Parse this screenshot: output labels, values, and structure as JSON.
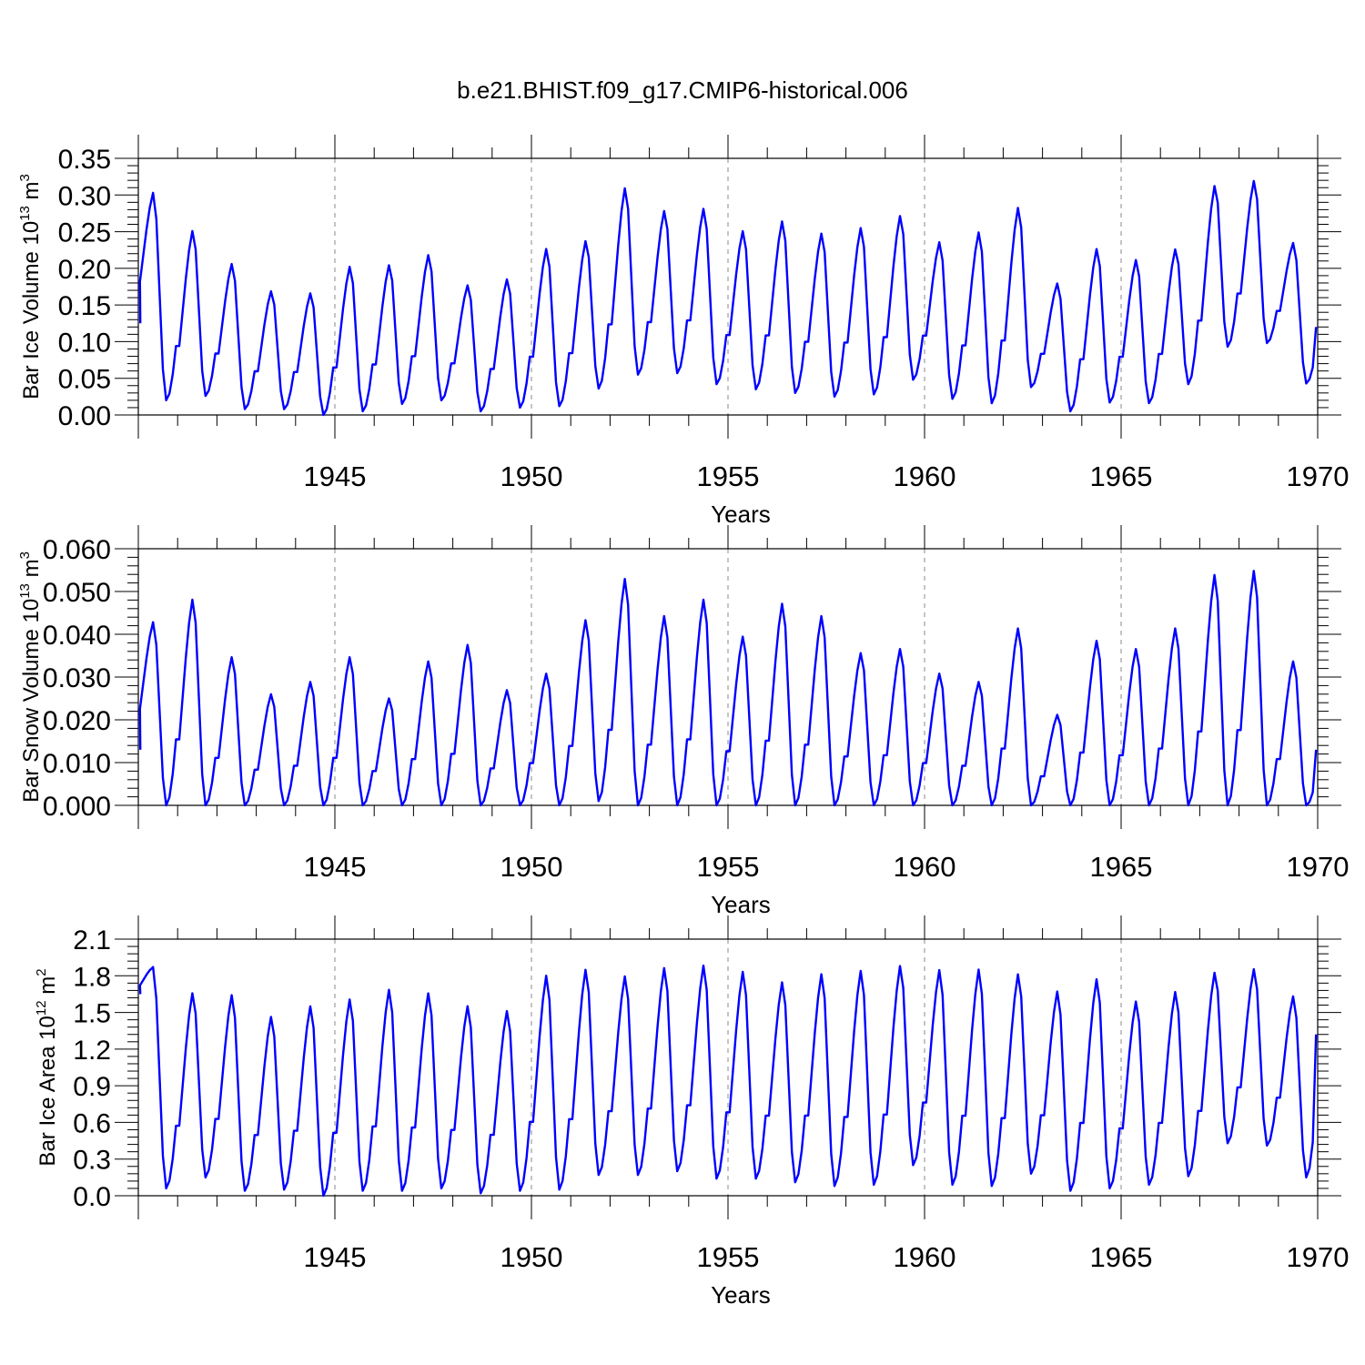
{
  "page_title": "b.e21.BHIST.f09_g17.CMIP6-historical.006",
  "chart_data": [
    {
      "type": "line",
      "ylabel": "Bar Ice Volume 10^13 m^3",
      "ylabel_parts": {
        "main": "Bar Ice Volume 10",
        "sup1": "13",
        "mid": " m",
        "sup2": "3"
      },
      "xlabel": "Years",
      "xlim": [
        1940.0,
        1970.0
      ],
      "ylim": [
        0.0,
        0.35
      ],
      "yticks": [
        "0.00",
        "0.05",
        "0.10",
        "0.15",
        "0.20",
        "0.25",
        "0.30",
        "0.35"
      ],
      "xticks": [
        "1945",
        "1950",
        "1955",
        "1960",
        "1965",
        "1970"
      ],
      "line_color": "#0000ff",
      "max": [
        0.31,
        0.26,
        0.213,
        0.175,
        0.172,
        0.21,
        0.212,
        0.226,
        0.183,
        0.192,
        0.235,
        0.246,
        0.32,
        0.287,
        0.29,
        0.259,
        0.273,
        0.256,
        0.264,
        0.281,
        0.243,
        0.258,
        0.293,
        0.185,
        0.235,
        0.219,
        0.234,
        0.323,
        0.328,
        0.24
      ],
      "min": [
        0.02,
        0.026,
        0.008,
        0.008,
        0.0,
        0.005,
        0.015,
        0.02,
        0.005,
        0.01,
        0.012,
        0.036,
        0.055,
        0.057,
        0.042,
        0.035,
        0.03,
        0.025,
        0.028,
        0.048,
        0.022,
        0.016,
        0.038,
        0.005,
        0.017,
        0.016,
        0.042,
        0.093,
        0.098,
        0.043
      ],
      "start": 0.125,
      "end": 0.12
    },
    {
      "type": "line",
      "ylabel": "Bar Snow Volume 10^13 m^3",
      "ylabel_parts": {
        "main": "Bar Snow Volume 10",
        "sup1": "13",
        "mid": " m",
        "sup2": "3"
      },
      "xlabel": "Years",
      "xlim": [
        1940.0,
        1970.0
      ],
      "ylim": [
        0.0,
        0.06
      ],
      "yticks": [
        "0.000",
        "0.010",
        "0.020",
        "0.030",
        "0.040",
        "0.050",
        "0.060"
      ],
      "xticks": [
        "1945",
        "1950",
        "1955",
        "1960",
        "1965",
        "1970"
      ],
      "line_color": "#0000ff",
      "max": [
        0.044,
        0.05,
        0.036,
        0.027,
        0.03,
        0.036,
        0.026,
        0.035,
        0.039,
        0.028,
        0.032,
        0.045,
        0.055,
        0.046,
        0.05,
        0.041,
        0.049,
        0.046,
        0.037,
        0.038,
        0.032,
        0.03,
        0.043,
        0.022,
        0.04,
        0.038,
        0.043,
        0.056,
        0.057,
        0.035
      ],
      "min": [
        0.0,
        0.0,
        0.0,
        0.0,
        0.0,
        0.0,
        0.0,
        0.0,
        0.0,
        0.0,
        0.0,
        0.001,
        0.0,
        0.0,
        0.0,
        0.0,
        0.0,
        0.0,
        0.0,
        0.0,
        0.0,
        0.0,
        0.0,
        0.0,
        0.0,
        0.0,
        0.0,
        0.0,
        0.0,
        0.0
      ],
      "start": 0.013,
      "end": 0.013
    },
    {
      "type": "line",
      "ylabel": "Bar Ice Area 10^12 m^2",
      "ylabel_parts": {
        "main": "Bar Ice Area 10",
        "sup1": "12",
        "mid": " m",
        "sup2": "2"
      },
      "xlabel": "Years",
      "xlim": [
        1940.0,
        1970.0
      ],
      "ylim": [
        0.0,
        2.1
      ],
      "yticks": [
        "0.0",
        "0.3",
        "0.6",
        "0.9",
        "1.2",
        "1.5",
        "1.8",
        "2.1"
      ],
      "xticks": [
        "1945",
        "1950",
        "1955",
        "1960",
        "1965",
        "1970"
      ],
      "line_color": "#0000ff",
      "max": [
        1.88,
        1.72,
        1.7,
        1.52,
        1.61,
        1.67,
        1.75,
        1.72,
        1.61,
        1.57,
        1.87,
        1.92,
        1.86,
        1.93,
        1.95,
        1.9,
        1.81,
        1.88,
        1.91,
        1.95,
        1.91,
        1.92,
        1.88,
        1.73,
        1.84,
        1.65,
        1.73,
        1.89,
        1.91,
        1.68
      ],
      "min": [
        0.06,
        0.15,
        0.04,
        0.05,
        0.0,
        0.04,
        0.04,
        0.06,
        0.02,
        0.04,
        0.05,
        0.17,
        0.17,
        0.2,
        0.14,
        0.14,
        0.11,
        0.08,
        0.09,
        0.25,
        0.09,
        0.08,
        0.18,
        0.04,
        0.06,
        0.09,
        0.16,
        0.43,
        0.41,
        0.15
      ],
      "start": 1.65,
      "end": 1.32
    }
  ]
}
